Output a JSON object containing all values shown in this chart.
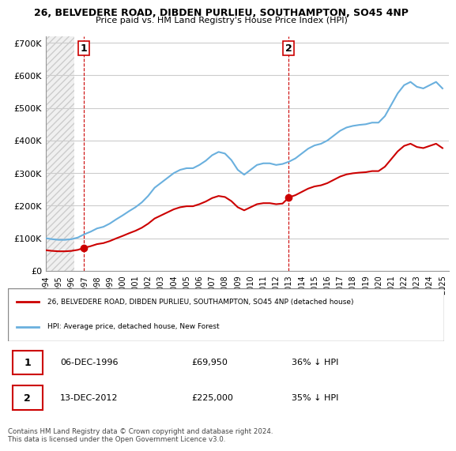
{
  "title_line1": "26, BELVEDERE ROAD, DIBDEN PURLIEU, SOUTHAMPTON, SO45 4NP",
  "title_line2": "Price paid vs. HM Land Registry's House Price Index (HPI)",
  "ylim": [
    0,
    720000
  ],
  "yticks": [
    0,
    100000,
    200000,
    300000,
    400000,
    500000,
    600000,
    700000
  ],
  "ytick_labels": [
    "£0",
    "£100K",
    "£200K",
    "£300K",
    "£400K",
    "£500K",
    "£600K",
    "£700K"
  ],
  "hpi_color": "#6ab0de",
  "price_color": "#cc0000",
  "marker1_date_idx": 2.9,
  "marker2_date_idx": 18.9,
  "sale1": {
    "date": "06-DEC-1996",
    "price": 69950,
    "label": "36% ↓ HPI"
  },
  "sale2": {
    "date": "13-DEC-2012",
    "price": 225000,
    "label": "35% ↓ HPI"
  },
  "legend_label_red": "26, BELVEDERE ROAD, DIBDEN PURLIEU, SOUTHAMPTON, SO45 4NP (detached house)",
  "legend_label_blue": "HPI: Average price, detached house, New Forest",
  "footer": "Contains HM Land Registry data © Crown copyright and database right 2024.\nThis data is licensed under the Open Government Licence v3.0.",
  "bg_hatch_color": "#e8e8e8",
  "grid_color": "#cccccc"
}
